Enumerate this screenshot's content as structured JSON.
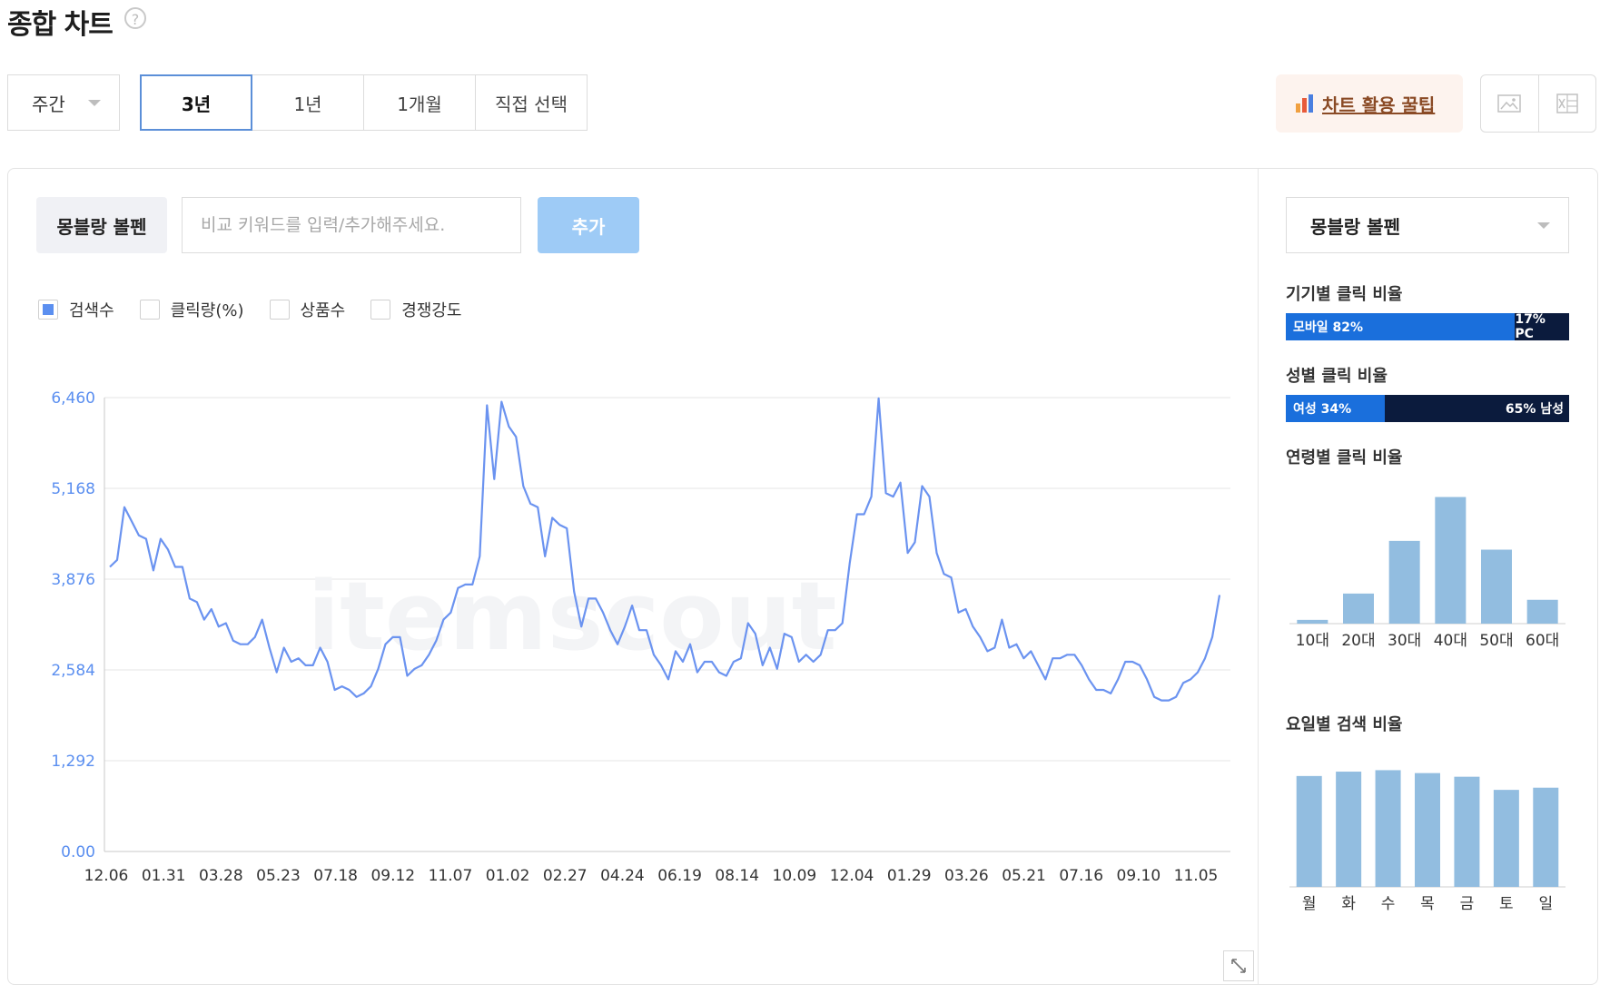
{
  "header": {
    "title": "종합 차트",
    "help_icon": "question-circle-icon"
  },
  "controls": {
    "period_select": "주간",
    "tabs": [
      {
        "label": "3년",
        "active": true
      },
      {
        "label": "1년",
        "active": false
      },
      {
        "label": "1개월",
        "active": false
      },
      {
        "label": "직접 선택",
        "active": false
      }
    ],
    "tip_button": "차트 활용 꿀팁",
    "tip_icon_colors": [
      "#f0a040",
      "#e85a3a",
      "#4a7fe0"
    ],
    "image_icon": "image-download-icon",
    "excel_icon": "excel-download-icon"
  },
  "keyword": {
    "chip": "몽블랑 볼펜",
    "input_placeholder": "비교 키워드를 입력/추가해주세요.",
    "add_button": "추가"
  },
  "legend": [
    {
      "label": "검색수",
      "checked": true
    },
    {
      "label": "클릭량(%)",
      "checked": false
    },
    {
      "label": "상품수",
      "checked": false
    },
    {
      "label": "경쟁강도",
      "checked": false
    }
  ],
  "watermark": "itemscout",
  "chart_data": {
    "type": "line",
    "series": [
      {
        "name": "검색수",
        "color": "#6b93f0",
        "values": [
          4050,
          4150,
          4900,
          4700,
          4500,
          4450,
          4000,
          4450,
          4300,
          4050,
          4050,
          3600,
          3550,
          3300,
          3450,
          3200,
          3250,
          3000,
          2950,
          2950,
          3050,
          3300,
          2900,
          2550,
          2900,
          2700,
          2750,
          2650,
          2650,
          2900,
          2700,
          2300,
          2350,
          2300,
          2200,
          2250,
          2350,
          2600,
          2950,
          3050,
          3050,
          2500,
          2600,
          2650,
          2800,
          3000,
          3300,
          3400,
          3750,
          3800,
          3800,
          4200,
          6350,
          5300,
          6400,
          6050,
          5900,
          5200,
          4950,
          4900,
          4200,
          4750,
          4650,
          4600,
          3700,
          3200,
          3600,
          3600,
          3400,
          3150,
          2950,
          3200,
          3500,
          3150,
          3150,
          2800,
          2650,
          2450,
          2850,
          2700,
          2950,
          2550,
          2700,
          2700,
          2550,
          2500,
          2700,
          2750,
          3250,
          3100,
          2650,
          2900,
          2600,
          3100,
          3050,
          2700,
          2800,
          2700,
          2800,
          3150,
          3150,
          3250,
          4100,
          4800,
          4800,
          5050,
          6450,
          5100,
          5050,
          5250,
          4250,
          4400,
          5200,
          5050,
          4250,
          3950,
          3900,
          3400,
          3450,
          3200,
          3050,
          2850,
          2900,
          3300,
          2900,
          2950,
          2750,
          2850,
          2650,
          2450,
          2750,
          2750,
          2800,
          2800,
          2650,
          2450,
          2300,
          2300,
          2250,
          2450,
          2700,
          2700,
          2650,
          2450,
          2200,
          2150,
          2150,
          2200,
          2400,
          2450,
          2550,
          2750,
          3050,
          3650
        ]
      }
    ],
    "x_tick_labels": [
      "12.06",
      "01.31",
      "03.28",
      "05.23",
      "07.18",
      "09.12",
      "11.07",
      "01.02",
      "02.27",
      "04.24",
      "06.19",
      "08.14",
      "10.09",
      "12.04",
      "01.29",
      "03.26",
      "05.21",
      "07.16",
      "09.10",
      "11.05"
    ],
    "y_tick_labels": [
      "0.00",
      "1,292",
      "2,584",
      "3,876",
      "5,168",
      "6,460"
    ],
    "ylim": [
      0,
      6460
    ],
    "grid": true
  },
  "side": {
    "select": "몽블랑 볼펜",
    "device": {
      "title": "기기별 클릭 비율",
      "left_label": "모바일 82%",
      "right_label": "17% PC",
      "left_pct": 82,
      "left_color": "#1a6fdc",
      "right_color": "#0b1b3d"
    },
    "gender": {
      "title": "성별 클릭 비율",
      "left_label": "여성 34%",
      "right_label": "65% 남성",
      "left_pct": 34,
      "left_color": "#1a6fdc",
      "right_color": "#0b1b3d"
    },
    "age": {
      "title": "연령별 클릭 비율",
      "categories": [
        "10대",
        "20대",
        "30대",
        "40대",
        "50대",
        "60대"
      ],
      "values": [
        3,
        24,
        66,
        101,
        59,
        19
      ],
      "ylim": [
        0,
        105
      ],
      "bar_color": "#92bde0"
    },
    "weekday": {
      "title": "요일별 검색 비율",
      "categories": [
        "월",
        "화",
        "수",
        "목",
        "금",
        "토",
        "일"
      ],
      "values": [
        15.2,
        15.8,
        16.0,
        15.6,
        15.1,
        13.3,
        13.6
      ],
      "ylim": [
        0,
        16.8
      ],
      "bar_color": "#92bde0"
    }
  },
  "expand_icon": "expand-arrows-icon"
}
